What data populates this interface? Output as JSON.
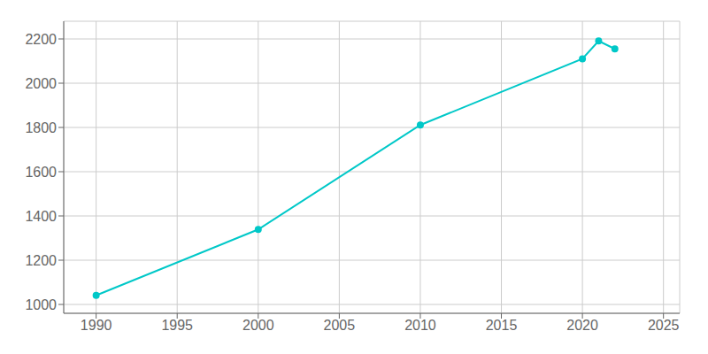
{
  "chart_data": {
    "type": "line",
    "x": [
      1990,
      2000,
      2010,
      2020,
      2021,
      2022
    ],
    "values": [
      1041,
      1339,
      1811,
      2110,
      2191,
      2155
    ],
    "color": "#00C8C8",
    "marker": "circle",
    "xlim": [
      1988,
      2026
    ],
    "ylim": [
      960,
      2280
    ],
    "xticks": [
      1990,
      1995,
      2000,
      2005,
      2010,
      2015,
      2020,
      2025
    ],
    "yticks": [
      1000,
      1200,
      1400,
      1600,
      1800,
      2000,
      2200
    ],
    "grid": true
  }
}
